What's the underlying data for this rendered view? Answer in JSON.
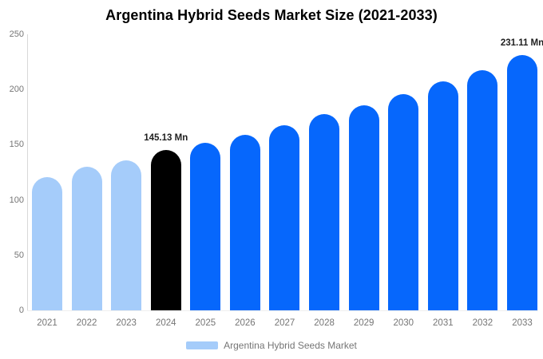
{
  "chart_data": {
    "type": "bar",
    "title": "Argentina Hybrid Seeds Market Size (2021-2033)",
    "categories": [
      "2021",
      "2022",
      "2023",
      "2024",
      "2025",
      "2026",
      "2027",
      "2028",
      "2029",
      "2030",
      "2031",
      "2032",
      "2033"
    ],
    "series": [
      {
        "name": "Argentina Hybrid Seeds Market",
        "values": [
          121.0,
          129.9,
          135.5,
          145.13,
          151.9,
          158.9,
          167.5,
          177.5,
          186.0,
          195.7,
          207.2,
          217.8,
          231.11
        ]
      }
    ],
    "value_unit": "Mn",
    "ylim": [
      0,
      250
    ],
    "y_ticks": [
      0,
      50,
      100,
      150,
      200,
      250
    ],
    "grid": false,
    "legend_position": "bottom",
    "data_labels": [
      {
        "category": "2024",
        "text": "145.13 Mn"
      },
      {
        "category": "2033",
        "text": "231.11 Mn"
      }
    ],
    "bar_colors": [
      "#A5CCFA",
      "#A5CCFA",
      "#A5CCFA",
      "#000000",
      "#0667FC",
      "#0667FC",
      "#0667FC",
      "#0667FC",
      "#0667FC",
      "#0667FC",
      "#0667FC",
      "#0667FC",
      "#0667FC"
    ],
    "colors": {
      "historical": "#A5CCFA",
      "current_year_highlight": "#000000",
      "forecast": "#0667FC",
      "axis_line": "#D8D8D8",
      "axis_text": "#757575",
      "value_label_text": "#1F1F1F",
      "legend_text": "#757575"
    }
  },
  "legend": {
    "label": "Argentina Hybrid Seeds Market",
    "swatch_color": "#A5CCFA"
  }
}
